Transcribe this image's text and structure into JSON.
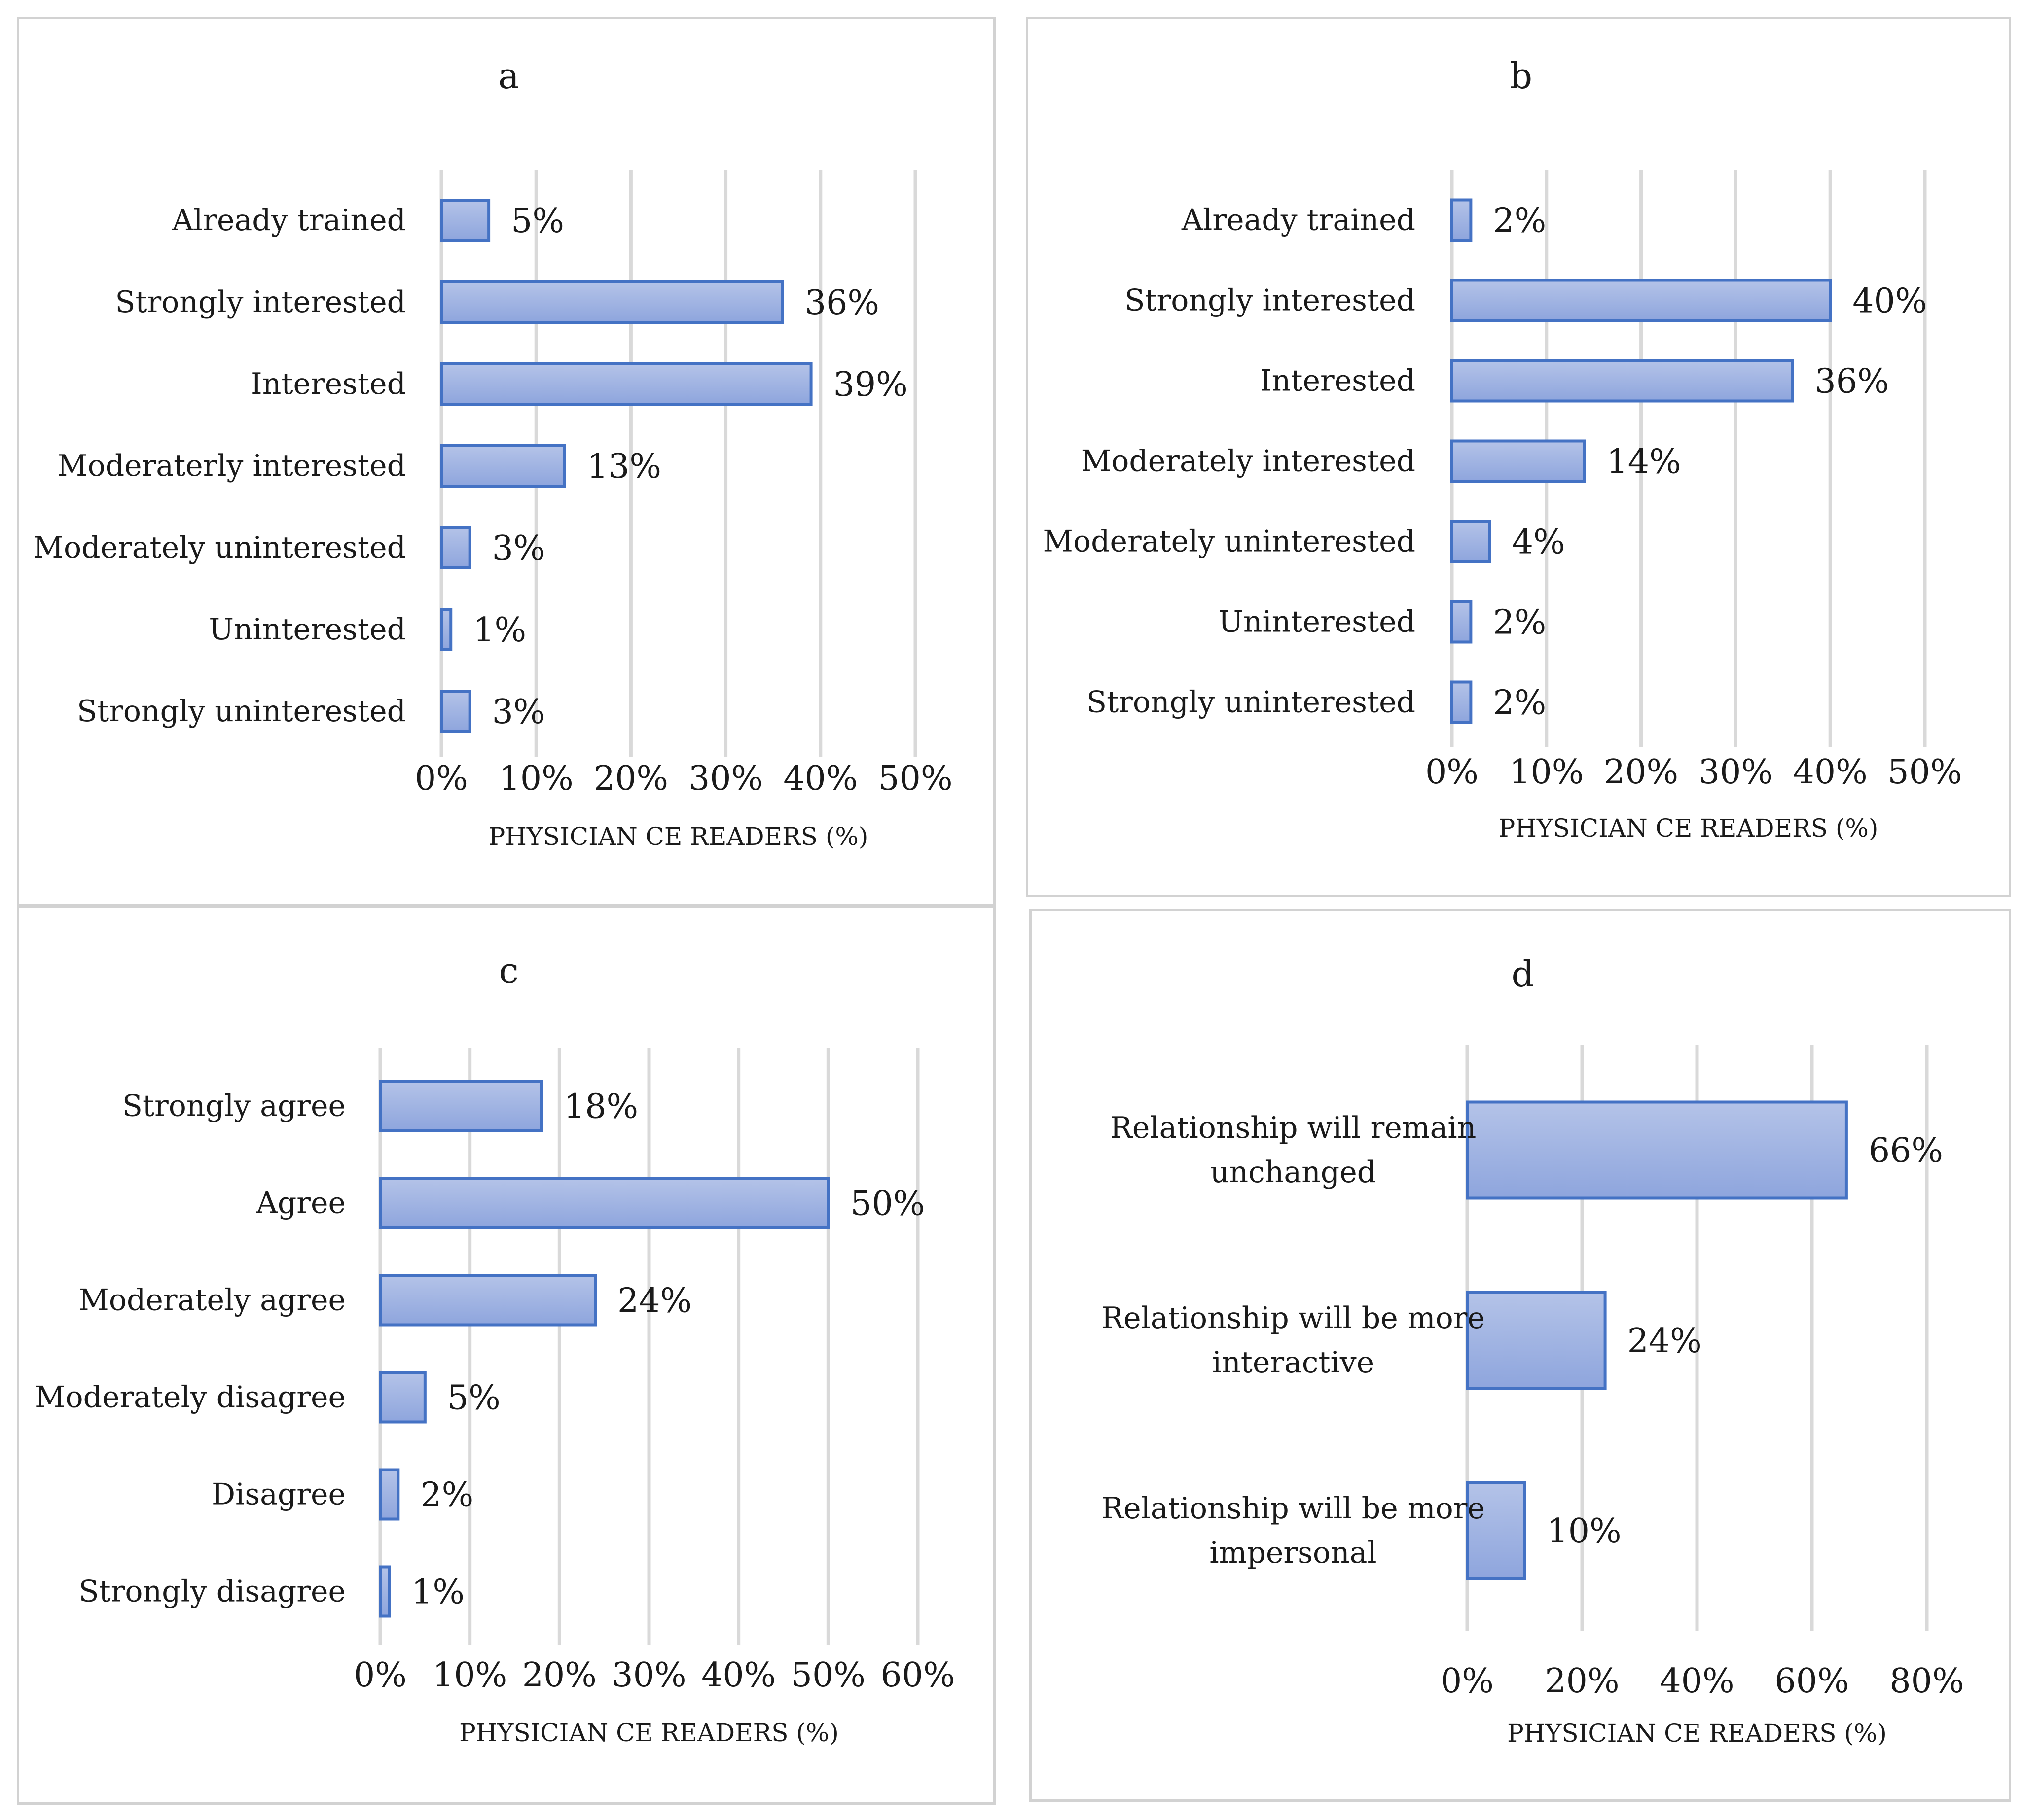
{
  "colors": {
    "bar_fill_light": "#b4c3e8",
    "bar_fill_dark": "#8ea5dd",
    "bar_stroke": "#4472c4",
    "grid": "#d9d9d9",
    "border": "#d2d2d2"
  },
  "chart_data": [
    {
      "type": "bar",
      "orientation": "horizontal",
      "title": "a",
      "categories": [
        "Already trained",
        "Strongly interested",
        "Interested",
        "Moderaterly interested",
        "Moderately uninterested",
        "Uninterested",
        "Strongly uninterested"
      ],
      "values": [
        5,
        36,
        39,
        13,
        3,
        1,
        3
      ],
      "value_labels": [
        "5%",
        "36%",
        "39%",
        "13%",
        "3%",
        "1%",
        "3%"
      ],
      "ticks": [
        0,
        10,
        20,
        30,
        40,
        50
      ],
      "tick_labels": [
        "0%",
        "10%",
        "20%",
        "30%",
        "40%",
        "50%"
      ],
      "xlim": [
        0,
        50
      ],
      "xlabel": "PHYSICIAN CE READERS (%)",
      "grid": true
    },
    {
      "type": "bar",
      "orientation": "horizontal",
      "title": "b",
      "categories": [
        "Already trained",
        "Strongly interested",
        "Interested",
        "Moderately interested",
        "Moderately uninterested",
        "Uninterested",
        "Strongly uninterested"
      ],
      "values": [
        2,
        40,
        36,
        14,
        4,
        2,
        2
      ],
      "value_labels": [
        "2%",
        "40%",
        "36%",
        "14%",
        "4%",
        "2%",
        "2%"
      ],
      "ticks": [
        0,
        10,
        20,
        30,
        40,
        50
      ],
      "tick_labels": [
        "0%",
        "10%",
        "20%",
        "30%",
        "40%",
        "50%"
      ],
      "xlim": [
        0,
        50
      ],
      "xlabel": "PHYSICIAN CE READERS (%)",
      "grid": true
    },
    {
      "type": "bar",
      "orientation": "horizontal",
      "title": "c",
      "categories": [
        "Strongly agree",
        "Agree",
        "Moderately agree",
        "Moderately disagree",
        "Disagree",
        "Strongly disagree"
      ],
      "values": [
        18,
        50,
        24,
        5,
        2,
        1
      ],
      "value_labels": [
        "18%",
        "50%",
        "24%",
        "5%",
        "2%",
        "1%"
      ],
      "ticks": [
        0,
        10,
        20,
        30,
        40,
        50,
        60
      ],
      "tick_labels": [
        "0%",
        "10%",
        "20%",
        "30%",
        "40%",
        "50%",
        "60%"
      ],
      "xlim": [
        0,
        60
      ],
      "xlabel": "PHYSICIAN CE READERS (%)",
      "grid": true
    },
    {
      "type": "bar",
      "orientation": "horizontal",
      "title": "d",
      "categories": [
        [
          "Relationship will remain",
          "unchanged"
        ],
        [
          "Relationship will be more",
          "interactive"
        ],
        [
          "Relationship will be more",
          "impersonal"
        ]
      ],
      "values": [
        66,
        24,
        10
      ],
      "value_labels": [
        "66%",
        "24%",
        "10%"
      ],
      "ticks": [
        0,
        20,
        40,
        60,
        80
      ],
      "tick_labels": [
        "0%",
        "20%",
        "40%",
        "60%",
        "80%"
      ],
      "xlim": [
        0,
        80
      ],
      "xlabel": "PHYSICIAN CE READERS (%)",
      "grid": true
    }
  ]
}
